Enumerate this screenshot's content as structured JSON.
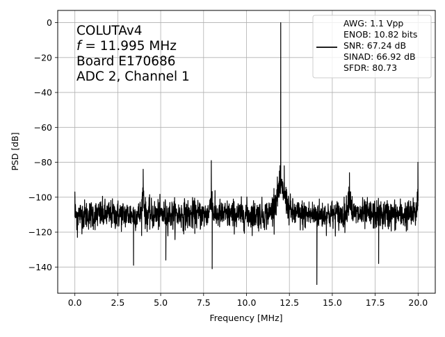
{
  "chart_data": {
    "type": "line",
    "xlabel": "Frequency [MHz]",
    "ylabel": "PSD [dB]",
    "xlim": [
      -1.0,
      21.0
    ],
    "ylim": [
      -155,
      7
    ],
    "xticks": [
      0.0,
      2.5,
      5.0,
      7.5,
      10.0,
      12.5,
      15.0,
      17.5,
      20.0
    ],
    "xtick_labels": [
      "0.0",
      "2.5",
      "5.0",
      "7.5",
      "10.0",
      "12.5",
      "15.0",
      "17.5",
      "20.0"
    ],
    "yticks": [
      0,
      -20,
      -40,
      -60,
      -80,
      -100,
      -120,
      -140
    ],
    "ytick_labels": [
      "0",
      "−20",
      "−40",
      "−60",
      "−80",
      "−100",
      "−120",
      "−140"
    ],
    "grid": true,
    "legend_position": "top-right",
    "annotation": {
      "line1": "COLUTAv4",
      "line2_italic": "f",
      "line2_rest": " = 11.995 MHz",
      "line3": "Board E170686",
      "line4": "ADC 2, Channel 1"
    },
    "legend": {
      "lines": [
        "AWG: 1.1 Vpp",
        "ENOB: 10.82 bits",
        "SNR: 67.24 dB",
        "SINAD: 66.92 dB",
        "SFDR: 80.73"
      ]
    },
    "series": [
      {
        "color": "#000000",
        "noise_floor_db": -110,
        "noise_spread_db": 8,
        "points": [
          {
            "x": 0.0,
            "y": -97
          },
          {
            "x": 0.15,
            "y": -123
          },
          {
            "x": 3.42,
            "y": -139
          },
          {
            "x": 3.98,
            "y": -84
          },
          {
            "x": 5.3,
            "y": -136
          },
          {
            "x": 7.95,
            "y": -79
          },
          {
            "x": 8.0,
            "y": -141
          },
          {
            "x": 11.6,
            "y": -95
          },
          {
            "x": 11.92,
            "y": -85
          },
          {
            "x": 11.995,
            "y": 0
          },
          {
            "x": 12.2,
            "y": -82
          },
          {
            "x": 12.35,
            "y": -97
          },
          {
            "x": 14.1,
            "y": -150
          },
          {
            "x": 16.0,
            "y": -86
          },
          {
            "x": 17.7,
            "y": -138
          },
          {
            "x": 19.95,
            "y": -97
          },
          {
            "x": 19.99,
            "y": -80
          }
        ]
      }
    ]
  }
}
